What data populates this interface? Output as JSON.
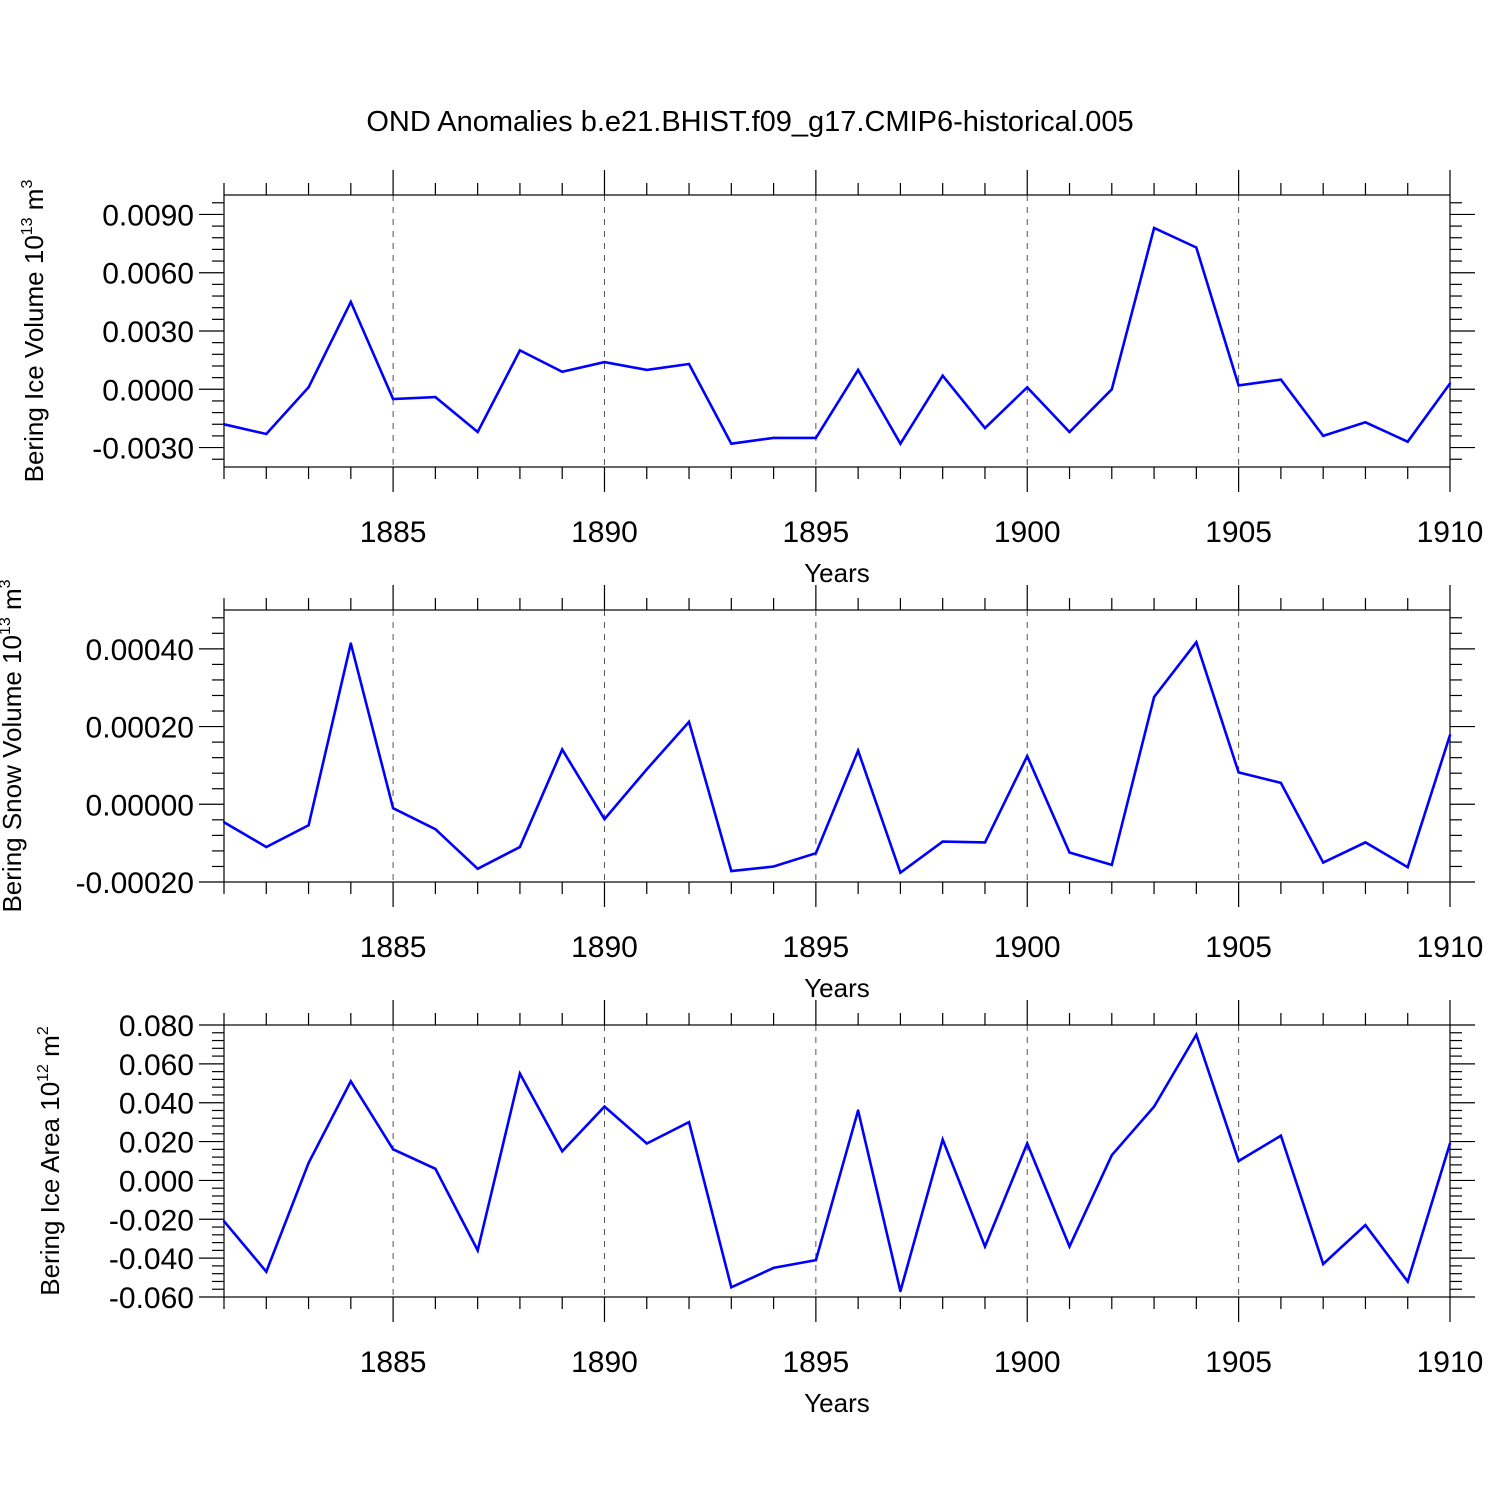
{
  "figure_title": "OND Anomalies b.e21.BHIST.f09_g17.CMIP6-historical.005",
  "line_color": "#0000ff",
  "chart_data": [
    {
      "type": "line",
      "xlabel": "Years",
      "ylabel_prefix": "Bering Ice Volume 10",
      "ylabel_exp": "13",
      "ylabel_unit": " m",
      "ylabel_unit_exp": "3",
      "xlim": [
        1881,
        1910
      ],
      "ylim": [
        -0.004,
        0.01
      ],
      "x_ticks": [
        "1885",
        "1890",
        "1895",
        "1900",
        "1905",
        "1910"
      ],
      "y_ticks": [
        "-0.0030",
        "0.0000",
        "0.0030",
        "0.0060",
        "0.0090"
      ],
      "y_tick_values": [
        -0.003,
        0.0,
        0.003,
        0.006,
        0.009
      ],
      "x": [
        1881,
        1882,
        1883,
        1884,
        1885,
        1886,
        1887,
        1888,
        1889,
        1890,
        1891,
        1892,
        1893,
        1894,
        1895,
        1896,
        1897,
        1898,
        1899,
        1900,
        1901,
        1902,
        1903,
        1904,
        1905,
        1906,
        1907,
        1908,
        1909,
        1910
      ],
      "values": [
        -0.0018,
        -0.0023,
        0.0001,
        0.0045,
        -0.0005,
        -0.0004,
        -0.0022,
        0.002,
        0.0009,
        0.0014,
        0.001,
        0.0013,
        -0.0028,
        -0.0025,
        -0.0025,
        0.001,
        -0.0028,
        0.0007,
        -0.002,
        0.0001,
        -0.0022,
        0.0,
        0.0083,
        0.0073,
        0.0002,
        0.0005,
        -0.0024,
        -0.0017,
        -0.0027,
        0.0003
      ]
    },
    {
      "type": "line",
      "xlabel": "Years",
      "ylabel_prefix": "Bering Snow Volume 10",
      "ylabel_exp": "13",
      "ylabel_unit": " m",
      "ylabel_unit_exp": "3",
      "xlim": [
        1881,
        1910
      ],
      "ylim": [
        -0.0002,
        0.0005
      ],
      "x_ticks": [
        "1885",
        "1890",
        "1895",
        "1900",
        "1905",
        "1910"
      ],
      "y_ticks": [
        "-0.00020",
        "0.00000",
        "0.00020",
        "0.00040"
      ],
      "y_tick_values": [
        -0.0002,
        0.0,
        0.0002,
        0.0004
      ],
      "x": [
        1881,
        1882,
        1883,
        1884,
        1885,
        1886,
        1887,
        1888,
        1889,
        1890,
        1891,
        1892,
        1893,
        1894,
        1895,
        1896,
        1897,
        1898,
        1899,
        1900,
        1901,
        1902,
        1903,
        1904,
        1905,
        1906,
        1907,
        1908,
        1909,
        1910
      ],
      "values": [
        -4.6e-05,
        -0.00011,
        -5.4e-05,
        0.000414,
        -1e-05,
        -6.4e-05,
        -0.000166,
        -0.00011,
        0.000141,
        -3.8e-05,
        9e-05,
        0.000212,
        -0.000172,
        -0.00016,
        -0.000126,
        0.000138,
        -0.000176,
        -9.6e-05,
        -9.8e-05,
        0.000124,
        -0.000124,
        -0.000156,
        0.000276,
        0.000417,
        8.2e-05,
        5.5e-05,
        -0.00015,
        -9.8e-05,
        -0.000162,
        0.000178
      ]
    },
    {
      "type": "line",
      "xlabel": "Years",
      "ylabel_prefix": "Bering Ice Area 10",
      "ylabel_exp": "12",
      "ylabel_unit": " m",
      "ylabel_unit_exp": "2",
      "xlim": [
        1881,
        1910
      ],
      "ylim": [
        -0.06,
        0.08
      ],
      "x_ticks": [
        "1885",
        "1890",
        "1895",
        "1900",
        "1905",
        "1910"
      ],
      "y_ticks": [
        "-0.060",
        "-0.040",
        "-0.020",
        "0.000",
        "0.020",
        "0.040",
        "0.060",
        "0.080"
      ],
      "y_tick_values": [
        -0.06,
        -0.04,
        -0.02,
        0.0,
        0.02,
        0.04,
        0.06,
        0.08
      ],
      "x": [
        1881,
        1882,
        1883,
        1884,
        1885,
        1886,
        1887,
        1888,
        1889,
        1890,
        1891,
        1892,
        1893,
        1894,
        1895,
        1896,
        1897,
        1898,
        1899,
        1900,
        1901,
        1902,
        1903,
        1904,
        1905,
        1906,
        1907,
        1908,
        1909,
        1910
      ],
      "values": [
        -0.021,
        -0.047,
        0.009,
        0.051,
        0.016,
        0.006,
        -0.036,
        0.055,
        0.015,
        0.038,
        0.019,
        0.03,
        -0.055,
        -0.045,
        -0.041,
        0.036,
        -0.057,
        0.021,
        -0.034,
        0.019,
        -0.034,
        0.013,
        0.038,
        0.075,
        0.01,
        0.023,
        -0.043,
        -0.023,
        -0.052,
        0.019
      ]
    }
  ]
}
